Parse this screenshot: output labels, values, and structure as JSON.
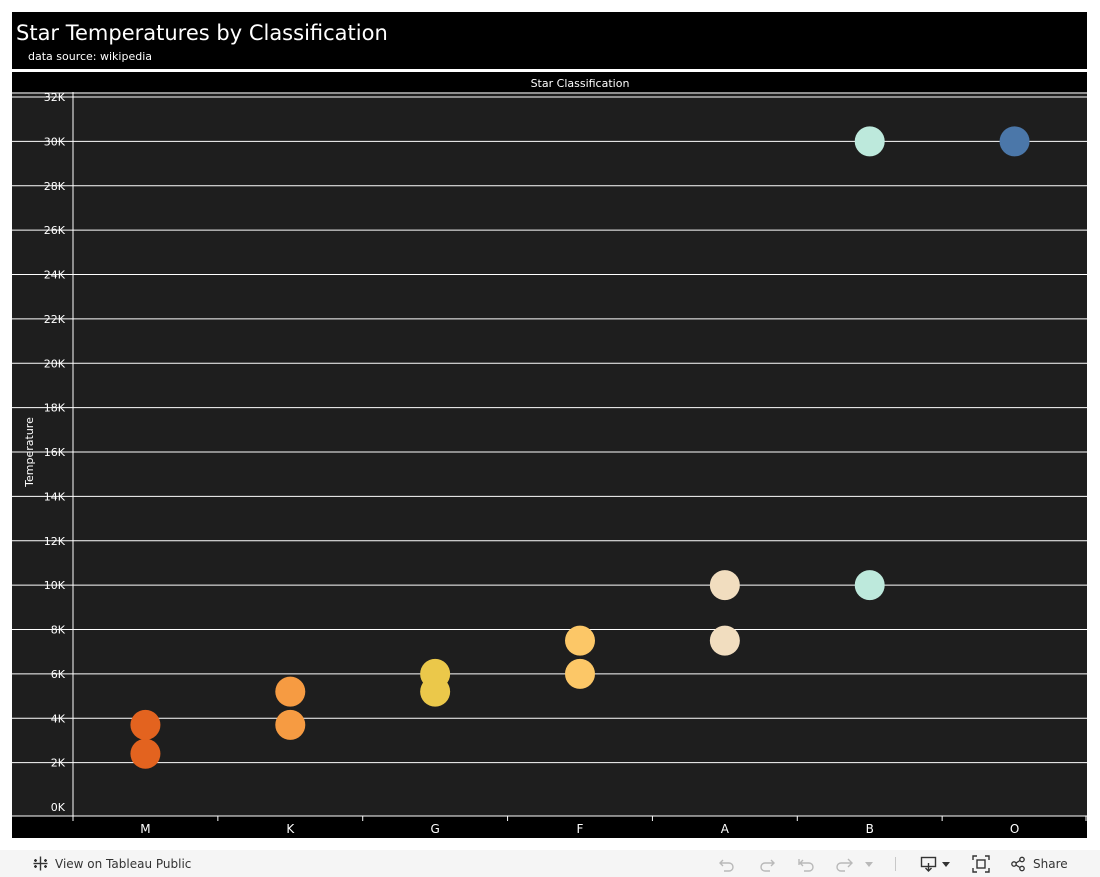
{
  "header": {
    "title": "Star Temperatures by Classification",
    "subtitle": "data source: wikipedia"
  },
  "colors": {
    "M": "#e3631f",
    "K": "#f69b42",
    "G": "#ebc84a",
    "F": "#fcc767",
    "A": "#f1ddbf",
    "B": "#bde9dc",
    "O": "#4b77a9",
    "background": "#1e1e1e",
    "frame": "#000000",
    "gridline": "#ffffff"
  },
  "chart_data": {
    "type": "scatter",
    "title": "Star Temperatures by Classification",
    "subtitle": "data source: wikipedia",
    "column_header": "Star Classification",
    "ylabel": "Temperature",
    "categories": [
      "M",
      "K",
      "G",
      "F",
      "A",
      "B",
      "O"
    ],
    "ylim": [
      0,
      32000
    ],
    "yticks": [
      0,
      2000,
      4000,
      6000,
      8000,
      10000,
      12000,
      14000,
      16000,
      18000,
      20000,
      22000,
      24000,
      26000,
      28000,
      30000,
      32000
    ],
    "ytick_labels": [
      "0K",
      "2K",
      "4K",
      "6K",
      "8K",
      "10K",
      "12K",
      "14K",
      "16K",
      "18K",
      "20K",
      "22K",
      "24K",
      "26K",
      "28K",
      "30K",
      "32K"
    ],
    "grid": true,
    "legend": "none",
    "points": [
      {
        "category": "M",
        "value": 2400
      },
      {
        "category": "M",
        "value": 3700
      },
      {
        "category": "K",
        "value": 3700
      },
      {
        "category": "K",
        "value": 5200
      },
      {
        "category": "G",
        "value": 5200
      },
      {
        "category": "G",
        "value": 6000
      },
      {
        "category": "F",
        "value": 6000
      },
      {
        "category": "F",
        "value": 7500
      },
      {
        "category": "A",
        "value": 7500
      },
      {
        "category": "A",
        "value": 10000
      },
      {
        "category": "B",
        "value": 10000
      },
      {
        "category": "B",
        "value": 30000
      },
      {
        "category": "O",
        "value": 30000
      }
    ]
  },
  "toolbar": {
    "view_label": "View on Tableau Public",
    "share_label": "Share",
    "icons": [
      "tableau-logo-icon",
      "undo-icon",
      "redo-icon",
      "revert-icon",
      "refresh-icon",
      "dropdown-caret-icon",
      "download-icon",
      "fullscreen-icon",
      "share-icon"
    ]
  }
}
